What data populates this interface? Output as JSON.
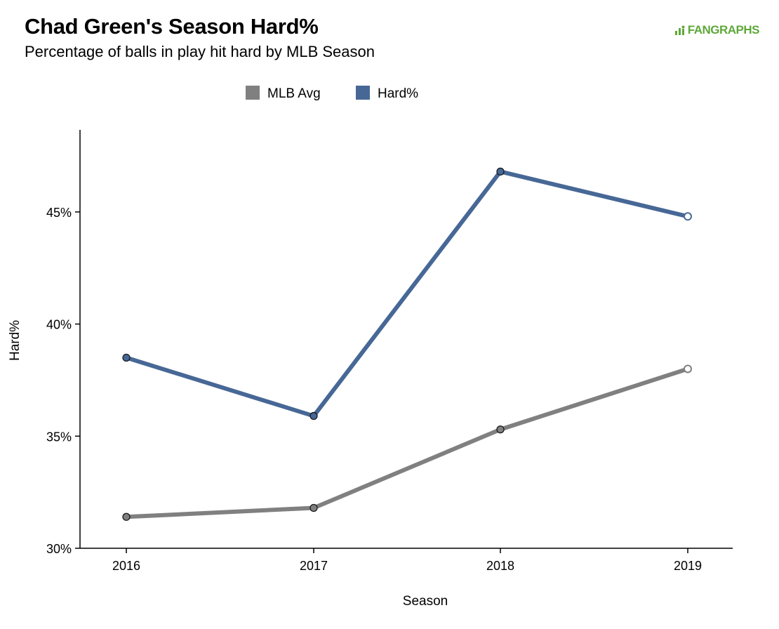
{
  "header": {
    "title": "Chad Green's Season Hard%",
    "subtitle": "Percentage of balls in play hit hard by MLB Season",
    "brand": "FANGRAPHS"
  },
  "colors": {
    "mlb_avg": "#808080",
    "hard_pct": "#476896",
    "axis": "#000000",
    "brand": "#5fa83a"
  },
  "icons": {
    "brand_logo": "fangraphs-logo-icon"
  },
  "chart_data": {
    "type": "line",
    "title": "Chad Green's Season Hard%",
    "subtitle": "Percentage of balls in play hit hard by MLB Season",
    "xlabel": "Season",
    "ylabel": "Hard%",
    "categories": [
      "2016",
      "2017",
      "2018",
      "2019"
    ],
    "y_ticks": [
      30,
      35,
      40,
      45
    ],
    "y_tick_labels": [
      "30%",
      "35%",
      "40%",
      "45%"
    ],
    "ylim": [
      30,
      48.3
    ],
    "grid": false,
    "legend_position": "top-center",
    "series": [
      {
        "name": "MLB Avg",
        "values": [
          31.4,
          31.8,
          35.3,
          38.0
        ],
        "color": "#808080"
      },
      {
        "name": "Hard%",
        "values": [
          38.5,
          35.9,
          46.8,
          44.8
        ],
        "color": "#476896"
      }
    ]
  }
}
